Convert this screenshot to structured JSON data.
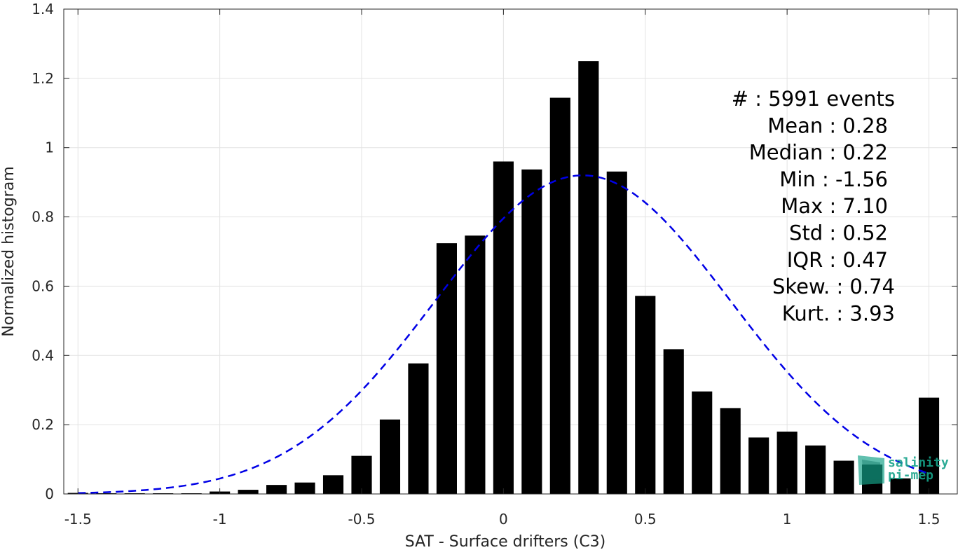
{
  "chart_data": {
    "type": "bar",
    "xlabel": "SAT - Surface drifters (C3)",
    "ylabel": "Normalized histogram",
    "xlim": [
      -1.55,
      1.6
    ],
    "ylim": [
      0,
      1.4
    ],
    "xticks": [
      -1.5,
      -1,
      -0.5,
      0,
      0.5,
      1,
      1.5
    ],
    "xtick_labels": [
      "-1.5",
      "-1",
      "-0.5",
      "0",
      "0.5",
      "1",
      "1.5"
    ],
    "yticks": [
      0,
      0.2,
      0.4,
      0.6,
      0.8,
      1,
      1.2,
      1.4
    ],
    "ytick_labels": [
      "0",
      "0.2",
      "0.4",
      "0.6",
      "0.8",
      "1",
      "1.2",
      "1.4"
    ],
    "grid": true,
    "bar_color": "#000000",
    "series": [
      {
        "x": [
          -1.5,
          -1.4,
          -1.3,
          -1.2,
          -1.1,
          -1.0,
          -0.9,
          -0.8,
          -0.7,
          -0.6,
          -0.5,
          -0.4,
          -0.3,
          -0.2,
          -0.1,
          0.0,
          0.1,
          0.2,
          0.3,
          0.4,
          0.5,
          0.6,
          0.7,
          0.8,
          0.9,
          1.0,
          1.1,
          1.2,
          1.3,
          1.4,
          1.5
        ],
        "values": [
          0.003,
          0.002,
          0.002,
          0.002,
          0.002,
          0.007,
          0.012,
          0.026,
          0.033,
          0.054,
          0.11,
          0.215,
          0.377,
          0.724,
          0.746,
          0.96,
          0.937,
          1.144,
          1.25,
          0.931,
          0.572,
          0.418,
          0.296,
          0.248,
          0.163,
          0.18,
          0.14,
          0.096,
          0.085,
          0.045,
          0.278
        ]
      }
    ],
    "fit_curve": {
      "style": "dashed",
      "color": "#0000e6",
      "mean": 0.28,
      "std": 0.52,
      "peak": 0.92,
      "x_range": [
        -1.5,
        1.5
      ]
    },
    "stats": [
      "#  : 5991 events",
      "Mean : 0.28",
      "Median : 0.22",
      "Min : -1.56",
      "Max : 7.10",
      "Std : 0.52",
      "IQR : 0.47",
      "Skew. : 0.74",
      "Kurt. : 3.93"
    ],
    "stats_anchor": [
      "end",
      "end",
      "end",
      "end",
      "end",
      "end",
      "end",
      "end",
      "end"
    ]
  },
  "logo": {
    "line1": "salinity",
    "line2": "pi-mep",
    "color": "#16a38a"
  }
}
